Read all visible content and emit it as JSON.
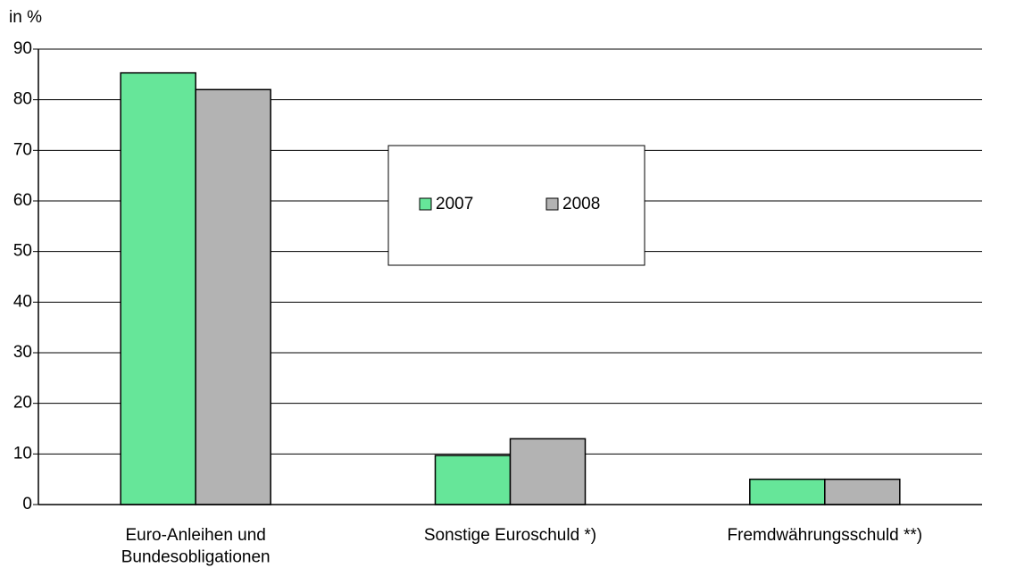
{
  "chart_data": {
    "type": "bar",
    "y_axis_label": "in %",
    "categories": [
      "Euro-Anleihen und\nBundesobligationen",
      "Sonstige Euroschuld *)",
      "Fremdwährungsschuld **)"
    ],
    "series": [
      {
        "name": "2007",
        "color": "#66e699",
        "values": [
          85.3,
          9.7,
          5.0
        ]
      },
      {
        "name": "2008",
        "color": "#b3b3b3",
        "values": [
          82.0,
          13.0,
          5.0
        ]
      }
    ],
    "ylim": [
      0,
      90
    ],
    "yticks": [
      0,
      10,
      20,
      30,
      40,
      50,
      60,
      70,
      80,
      90
    ],
    "grid": true
  }
}
